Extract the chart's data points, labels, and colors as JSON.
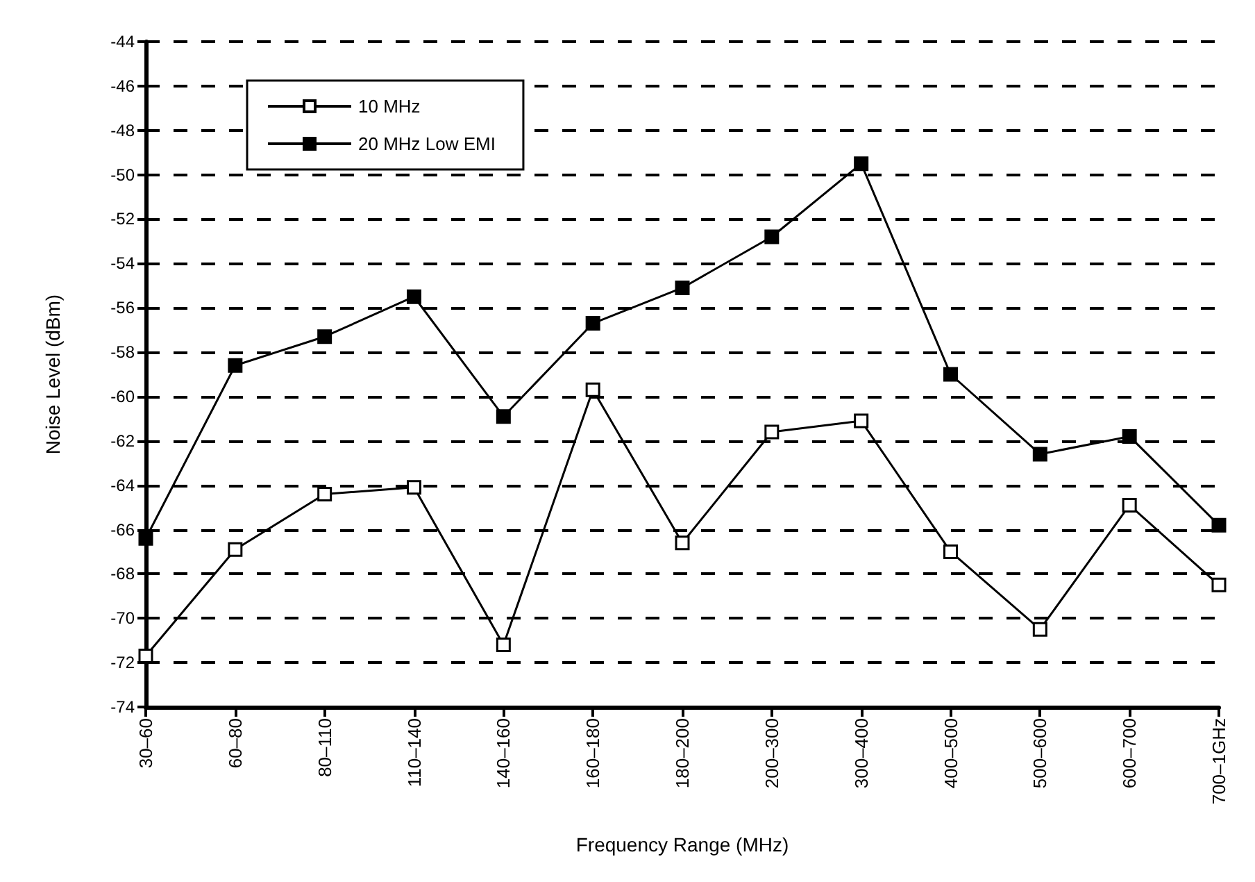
{
  "chart_data": {
    "type": "line",
    "xlabel": "Frequency Range (MHz)",
    "ylabel": "Noise Level (dBm)",
    "categories": [
      "30–60",
      "60–80",
      "80–110",
      "110–140",
      "140–160",
      "160–180",
      "180–200",
      "200–300",
      "300–400",
      "400–500",
      "500–600",
      "600–700",
      "700–1GHz"
    ],
    "series": [
      {
        "name": "10 MHz",
        "color": "#000000",
        "marker": "square_open",
        "values": [
          -71.7,
          -66.9,
          -64.4,
          -64.1,
          -71.2,
          -59.7,
          -66.6,
          -61.6,
          -61.1,
          -67.0,
          -70.5,
          -64.9,
          -68.5
        ]
      },
      {
        "name": "20 MHz Low EMI",
        "color": "#000000",
        "marker": "square",
        "values": [
          -66.4,
          -58.6,
          -57.3,
          -55.5,
          -60.9,
          -56.7,
          -55.1,
          -52.8,
          -49.5,
          -59.0,
          -62.6,
          -61.8,
          -65.8
        ]
      }
    ],
    "ylim": [
      -74,
      -44
    ],
    "yticks": [
      -74,
      -72,
      -70,
      -68,
      -66,
      -64,
      -62,
      -60,
      -58,
      -56,
      -54,
      -52,
      -50,
      -48,
      -46,
      -44
    ],
    "grid": "y",
    "legend": "top left",
    "line_style": "solid"
  }
}
